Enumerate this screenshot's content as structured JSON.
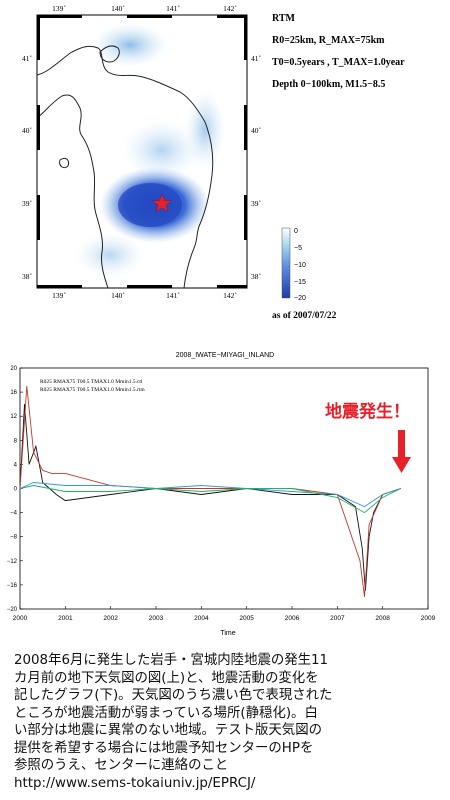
{
  "map": {
    "lon_ticks": [
      "139˚",
      "140˚",
      "141˚",
      "142˚"
    ],
    "lat_ticks": [
      "41˚",
      "40˚",
      "39˚",
      "38˚"
    ],
    "info_lines": [
      "RTM",
      "R0=25km, R_MAX=75km",
      "T0=0.5years , T_MAX=1.0year",
      "Depth 0−100km, M1.5−8.5"
    ],
    "colorbar_ticks": [
      "0",
      "−5",
      "−10",
      "−15",
      "−20"
    ],
    "as_of": "as of 2007/07/22",
    "colors": {
      "deep": "#2a4fc8",
      "mid": "#5b8fe0",
      "light": "#a9d4ef",
      "epicenter": "#e8202a"
    }
  },
  "chart": {
    "title": "2008_IWATE−MIYAGI_INLAND",
    "legend": [
      "R025  RMAX75  T00.5  TMAX1.0  Mmin1.5.ctl",
      "R025  RMAX75  T00.5  TMAX1.0  Mmin1.5.rtm"
    ],
    "xlabel": "Time",
    "quake_label": "地震発生！"
  },
  "chart_data": {
    "type": "line",
    "title": "2008_IWATE−MIYAGI_INLAND",
    "xlabel": "Time",
    "ylabel": "",
    "xlim": [
      2000,
      2009
    ],
    "ylim": [
      -20,
      20
    ],
    "x_ticks": [
      2000,
      2001,
      2002,
      2003,
      2004,
      2005,
      2006,
      2007,
      2008,
      2009
    ],
    "y_ticks": [
      20,
      16,
      12,
      8,
      4,
      0,
      -4,
      -8,
      -12,
      -16,
      -20
    ],
    "series": [
      {
        "color": "#111111",
        "x": [
          2000,
          2000.1,
          2000.2,
          2000.35,
          2000.5,
          2000.8,
          2001,
          2002,
          2003,
          2004,
          2005,
          2006,
          2007,
          2007.4,
          2007.55,
          2007.62,
          2007.7,
          2007.8,
          2008,
          2008.2,
          2008.4
        ],
        "y": [
          0,
          14,
          4,
          7,
          1,
          -1,
          -2,
          -1,
          0,
          -1,
          0,
          -1,
          -1,
          -3,
          -10,
          -17,
          -8,
          -4,
          -1,
          -0.5,
          0
        ]
      },
      {
        "color": "#c0392b",
        "x": [
          2000,
          2000.15,
          2000.3,
          2000.5,
          2000.7,
          2001,
          2002,
          2003,
          2004,
          2005,
          2006,
          2007,
          2007.5,
          2007.6,
          2007.7,
          2008,
          2008.4
        ],
        "y": [
          0,
          17,
          6,
          3,
          2.5,
          2.5,
          0.5,
          0,
          0,
          0,
          0,
          -1,
          -12,
          -18,
          -6,
          -1,
          0
        ]
      },
      {
        "color": "#3498db",
        "x": [
          2000,
          2000.3,
          2001,
          2002,
          2003,
          2004,
          2005,
          2006,
          2007,
          2007.6,
          2008,
          2008.4
        ],
        "y": [
          0,
          1,
          0.5,
          0.5,
          0,
          0.5,
          0,
          -0.5,
          -1,
          -3,
          -1,
          0
        ]
      },
      {
        "color": "#27ae60",
        "x": [
          2000,
          2000.3,
          2001,
          2002,
          2003,
          2004,
          2005,
          2006,
          2007,
          2007.6,
          2008,
          2008.4
        ],
        "y": [
          0,
          0.5,
          -0.5,
          -0.5,
          0,
          -0.5,
          0,
          0,
          -1.5,
          -4,
          -1.5,
          0
        ]
      }
    ],
    "annotation": "地震発生！"
  },
  "caption": {
    "lines": [
      "2008年6月に発生した岩手・宮城内陸地震の発生11",
      "カ月前の地下天気図の図(上)と、地震活動の変化を",
      "記したグラフ(下)。天気図のうち濃い色で表現された",
      "ところが地震活動が弱まっている場所(静穏化)。白",
      "い部分は地震に異常のない地域。テスト版天気図の",
      "提供を希望する場合には地震予知センターのHPを",
      "参照のうえ、センターに連絡のこと",
      "http://www.sems-tokaiuniv.jp/EPRCJ/"
    ]
  }
}
